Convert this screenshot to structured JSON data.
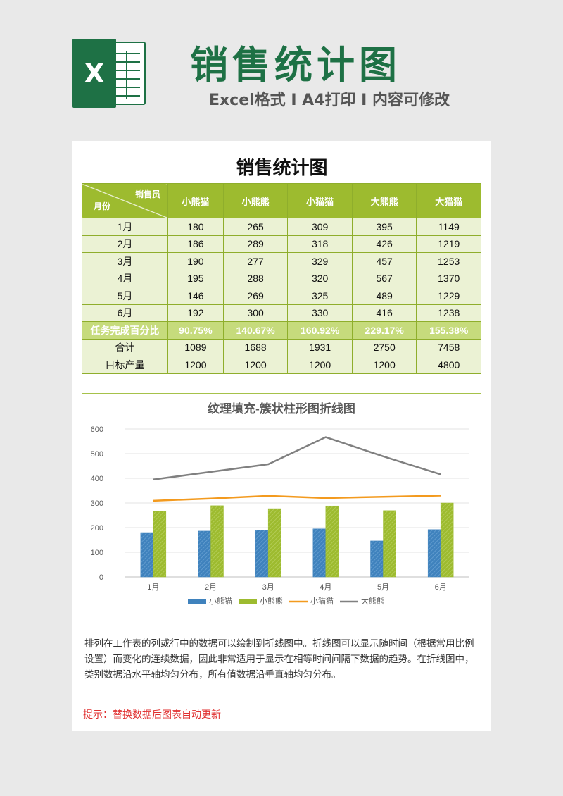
{
  "header": {
    "title": "销售统计图",
    "subtitle": "Excel格式 I A4打印 I 内容可修改",
    "logo_letter": "X"
  },
  "sheet": {
    "title": "销售统计图",
    "table": {
      "corner_top": "销售员",
      "corner_bottom": "月份",
      "columns": [
        "小熊猫",
        "小熊熊",
        "小猫猫",
        "大熊熊",
        "大猫猫"
      ],
      "months": [
        {
          "label": "1月",
          "values": [
            "180",
            "265",
            "309",
            "395",
            "1149"
          ]
        },
        {
          "label": "2月",
          "values": [
            "186",
            "289",
            "318",
            "426",
            "1219"
          ]
        },
        {
          "label": "3月",
          "values": [
            "190",
            "277",
            "329",
            "457",
            "1253"
          ]
        },
        {
          "label": "4月",
          "values": [
            "195",
            "288",
            "320",
            "567",
            "1370"
          ]
        },
        {
          "label": "5月",
          "values": [
            "146",
            "269",
            "325",
            "489",
            "1229"
          ]
        },
        {
          "label": "6月",
          "values": [
            "192",
            "300",
            "330",
            "416",
            "1238"
          ]
        }
      ],
      "pct_row": {
        "label": "任务完成百分比",
        "values": [
          "90.75%",
          "140.67%",
          "160.92%",
          "229.17%",
          "155.38%"
        ]
      },
      "total_row": {
        "label": "合计",
        "values": [
          "1089",
          "1688",
          "1931",
          "2750",
          "7458"
        ]
      },
      "target_row": {
        "label": "目标产量",
        "values": [
          "1200",
          "1200",
          "1200",
          "1200",
          "4800"
        ]
      }
    },
    "description": "排列在工作表的列或行中的数据可以绘制到折线图中。折线图可以显示随时间（根据常用比例设置）而变化的连续数据，因此非常适用于显示在相等时间间隔下数据的趋势。在折线图中，类别数据沿水平轴均匀分布，所有值数据沿垂直轴均匀分布。",
    "tip": "提示：替换数据后图表自动更新"
  },
  "colors": {
    "brand_green": "#1e7145",
    "table_header": "#9dbb2f",
    "series_blue": "#3f82bd",
    "series_green": "#9dbb2f",
    "series_orange": "#f39a1e",
    "series_gray": "#808080"
  },
  "chart_data": {
    "type": "bar",
    "title": "纹理填充-簇状柱形图折线图",
    "categories": [
      "1月",
      "2月",
      "3月",
      "4月",
      "5月",
      "6月"
    ],
    "ylim": [
      0,
      600
    ],
    "yticks": [
      "0",
      "100",
      "200",
      "300",
      "400",
      "500",
      "600"
    ],
    "series": [
      {
        "name": "小熊猫",
        "kind": "bar",
        "color": "#3f82bd",
        "values": [
          180,
          186,
          190,
          195,
          146,
          192
        ]
      },
      {
        "name": "小熊熊",
        "kind": "bar",
        "color": "#9dbb2f",
        "values": [
          265,
          289,
          277,
          288,
          269,
          300
        ]
      },
      {
        "name": "小猫猫",
        "kind": "line",
        "color": "#f39a1e",
        "values": [
          309,
          318,
          329,
          320,
          325,
          330
        ]
      },
      {
        "name": "大熊熊",
        "kind": "line",
        "color": "#808080",
        "values": [
          395,
          426,
          457,
          567,
          489,
          416
        ]
      }
    ],
    "grid": true,
    "legend": "bottom"
  }
}
